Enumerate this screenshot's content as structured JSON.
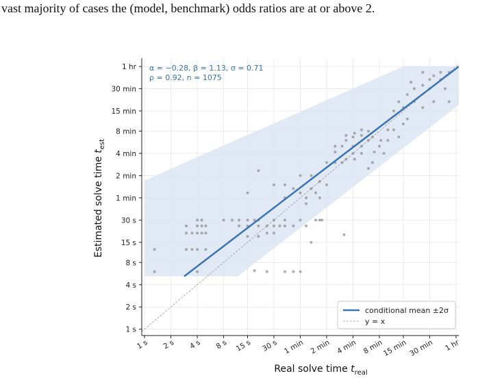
{
  "intro_text": "vast majority of cases the (model, benchmark) odds ratios are at or above 2.",
  "chart_data": {
    "type": "scatter",
    "xlabel": "Real solve time ",
    "xlabel_symbol": "t",
    "xlabel_subscript": "real",
    "ylabel": "Estimated solve time ",
    "ylabel_symbol": "t",
    "ylabel_subscript": "est",
    "annotations": [
      "α = −0.28,  β = 1.13,  σ = 0.71",
      "ρ = 0.92,  n = 1075"
    ],
    "annotation_color": "#3572b0",
    "log_x": true,
    "log_y": true,
    "grid": true,
    "legend_position": "lower right",
    "xlim": [
      0.93,
      3870
    ],
    "ylim": [
      0.82,
      4660
    ],
    "xticks": [
      {
        "value": 1,
        "label": "1 s"
      },
      {
        "value": 2,
        "label": "2 s"
      },
      {
        "value": 4,
        "label": "4 s"
      },
      {
        "value": 8,
        "label": "8 s"
      },
      {
        "value": 15,
        "label": "15 s"
      },
      {
        "value": 30,
        "label": "30 s"
      },
      {
        "value": 60,
        "label": "1 min"
      },
      {
        "value": 120,
        "label": "2 min"
      },
      {
        "value": 240,
        "label": "4 min"
      },
      {
        "value": 480,
        "label": "8 min"
      },
      {
        "value": 900,
        "label": "15 min"
      },
      {
        "value": 1800,
        "label": "30 min"
      },
      {
        "value": 3600,
        "label": "1 hr"
      }
    ],
    "yticks": [
      {
        "value": 1,
        "label": "1 s"
      },
      {
        "value": 2,
        "label": "2 s"
      },
      {
        "value": 4,
        "label": "4 s"
      },
      {
        "value": 8,
        "label": "8 s"
      },
      {
        "value": 15,
        "label": "15 s"
      },
      {
        "value": 30,
        "label": "30 s"
      },
      {
        "value": 60,
        "label": "1 min"
      },
      {
        "value": 120,
        "label": "2 min"
      },
      {
        "value": 240,
        "label": "4 min"
      },
      {
        "value": 480,
        "label": "8 min"
      },
      {
        "value": 900,
        "label": "15 min"
      },
      {
        "value": 1800,
        "label": "30 min"
      },
      {
        "value": 3600,
        "label": "1 hr"
      }
    ],
    "band": {
      "color": "#dbe5f2",
      "x": [
        1,
        11.6,
        918,
        3870
      ],
      "lower": [
        5.2,
        5.2,
        288,
        1090
      ],
      "upper": [
        103,
        373,
        3640,
        3640
      ]
    },
    "fit": {
      "name": "conditional mean ±2σ",
      "color": "#3a73b4",
      "x": [
        2.84,
        3870
      ],
      "values": [
        5.2,
        3600
      ]
    },
    "identity": {
      "name": "y = x",
      "color": "#999999",
      "x": [
        0.93,
        3870
      ],
      "values": [
        0.93,
        3870
      ]
    },
    "points": {
      "color": "#8a8a8a",
      "x": [
        3,
        3,
        3,
        3.5,
        4,
        4,
        4,
        4.5,
        4.5,
        5,
        5,
        4,
        4.5,
        5,
        3.5,
        4,
        8,
        10,
        12,
        15,
        15,
        18,
        20,
        20,
        25,
        25,
        30,
        30,
        30,
        35,
        40,
        40,
        12,
        15,
        20,
        50,
        60,
        90,
        70,
        100,
        80,
        30,
        40,
        50,
        60,
        70,
        80,
        90,
        60,
        80,
        100,
        120,
        20,
        15,
        40,
        70,
        100,
        150,
        180,
        200,
        240,
        240,
        250,
        300,
        300,
        360,
        360,
        400,
        480,
        500,
        200,
        150,
        300,
        420,
        150,
        180,
        240,
        600,
        360,
        120,
        300,
        250,
        200,
        540,
        400,
        700,
        800,
        900,
        1000,
        1200,
        1200,
        1500,
        1800,
        1800,
        2000,
        2400,
        2400,
        1500,
        900,
        1000,
        700,
        2000,
        3000,
        2700,
        1500,
        1100,
        800,
        600,
        3000,
        1.3,
        1.3,
        25,
        40,
        50,
        60,
        190,
        106,
        18
      ],
      "y": [
        20,
        12,
        25,
        20,
        20,
        25,
        12,
        20,
        25,
        20,
        12,
        30,
        30,
        25,
        12,
        6,
        30,
        30,
        30,
        30,
        25,
        30,
        30,
        25,
        25,
        20,
        30,
        25,
        20,
        25,
        30,
        25,
        25,
        18,
        18,
        25,
        30,
        30,
        25,
        30,
        15,
        90,
        90,
        80,
        70,
        60,
        80,
        70,
        120,
        120,
        100,
        90,
        140,
        70,
        60,
        50,
        60,
        300,
        300,
        360,
        300,
        400,
        450,
        420,
        300,
        360,
        480,
        400,
        300,
        360,
        200,
        180,
        240,
        250,
        250,
        180,
        240,
        360,
        150,
        180,
        500,
        200,
        420,
        240,
        180,
        900,
        1200,
        1000,
        1500,
        1200,
        1800,
        2000,
        1800,
        2400,
        2700,
        2400,
        3000,
        1000,
        600,
        700,
        500,
        1200,
        1200,
        1800,
        3000,
        2200,
        400,
        500,
        3000,
        12,
        6,
        6,
        6,
        6,
        6,
        19,
        30,
        6.2
      ]
    }
  }
}
